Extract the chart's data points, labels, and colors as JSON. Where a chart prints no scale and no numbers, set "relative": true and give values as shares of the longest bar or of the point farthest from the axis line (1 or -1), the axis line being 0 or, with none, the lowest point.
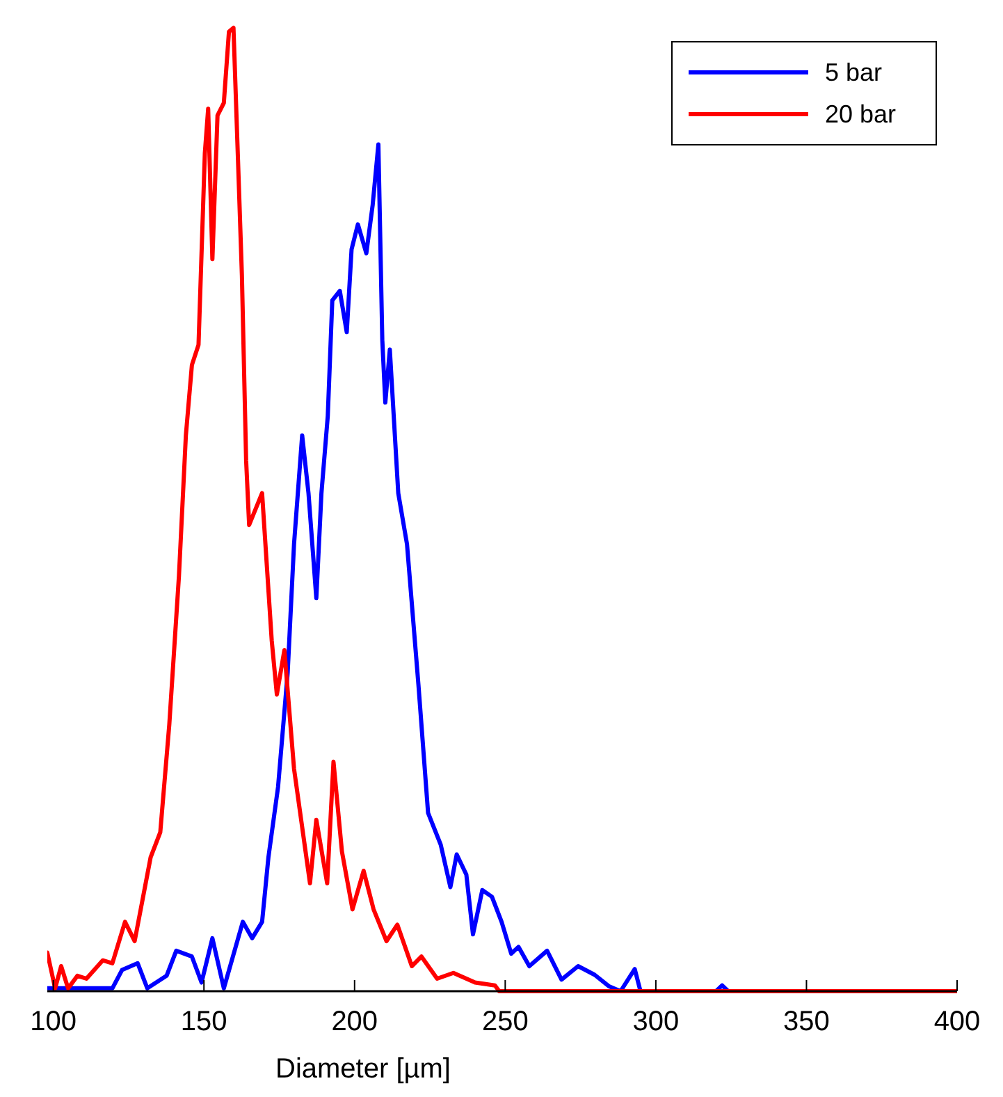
{
  "chart_data": {
    "type": "line",
    "xlabel": "Diameter [µm]",
    "relative": true,
    "xlim": [
      98,
      400
    ],
    "xticks": [
      100,
      150,
      200,
      250,
      300,
      350,
      400
    ],
    "legend": "top right",
    "grid": false,
    "tick_labels": "x",
    "series": [
      {
        "name": "5 bar",
        "color": "#0000ff",
        "x": [
          98,
          119.6,
          122.8,
          128,
          131.2,
          137.6,
          140.8,
          146,
          149.2,
          152.8,
          156.6,
          162.9,
          166,
          169.3,
          171.4,
          174.6,
          177.8,
          179.9,
          182.6,
          184.7,
          187.3,
          189,
          191.1,
          192.6,
          195.1,
          197.4,
          199,
          201.1,
          203.9,
          206,
          207.9,
          209.2,
          210.2,
          211.7,
          214.5,
          217.4,
          221.2,
          224.4,
          228.6,
          231.8,
          233.9,
          237.1,
          239.3,
          242.4,
          245.6,
          248.8,
          252,
          254.4,
          258,
          263.9,
          268.7,
          274.2,
          279.7,
          284.5,
          288.3,
          293,
          294.9,
          320,
          322,
          324,
          400
        ],
        "values": [
          0.003,
          0.003,
          0.022,
          0.029,
          0.003,
          0.016,
          0.042,
          0.036,
          0.009,
          0.055,
          0.003,
          0.072,
          0.055,
          0.072,
          0.139,
          0.212,
          0.331,
          0.464,
          0.577,
          0.517,
          0.408,
          0.517,
          0.597,
          0.717,
          0.727,
          0.684,
          0.77,
          0.796,
          0.766,
          0.816,
          0.879,
          0.676,
          0.611,
          0.666,
          0.517,
          0.464,
          0.318,
          0.185,
          0.152,
          0.108,
          0.142,
          0.121,
          0.059,
          0.105,
          0.098,
          0.072,
          0.039,
          0.046,
          0.026,
          0.042,
          0.012,
          0.026,
          0.017,
          0.005,
          0,
          0.023,
          0,
          0,
          0.006,
          0,
          0
        ]
      },
      {
        "name": "20 bar",
        "color": "#ff0000",
        "x": [
          98,
          100.6,
          102.6,
          104.9,
          108,
          111,
          116.4,
          119.6,
          123.8,
          127,
          132.3,
          135.5,
          138.5,
          141.7,
          144,
          146,
          148.2,
          150.3,
          151.4,
          152.8,
          154.5,
          156.6,
          158.3,
          159.8,
          161.3,
          162.6,
          164,
          165,
          169.3,
          172.5,
          174.2,
          176.7,
          179.9,
          185.2,
          187.3,
          190.9,
          193,
          195.8,
          199.3,
          203,
          206.3,
          210.6,
          214.2,
          219,
          222.2,
          227.4,
          232.8,
          240,
          246.6,
          248,
          400
        ],
        "values": [
          0.04,
          0.003,
          0.026,
          0.003,
          0.016,
          0.013,
          0.032,
          0.029,
          0.072,
          0.052,
          0.139,
          0.165,
          0.277,
          0.431,
          0.577,
          0.65,
          0.671,
          0.87,
          0.916,
          0.76,
          0.909,
          0.922,
          0.996,
          1,
          0.863,
          0.743,
          0.551,
          0.484,
          0.517,
          0.364,
          0.308,
          0.354,
          0.231,
          0.112,
          0.178,
          0.112,
          0.238,
          0.145,
          0.085,
          0.125,
          0.085,
          0.052,
          0.069,
          0.026,
          0.036,
          0.013,
          0.019,
          0.009,
          0.006,
          0,
          0
        ]
      }
    ]
  }
}
